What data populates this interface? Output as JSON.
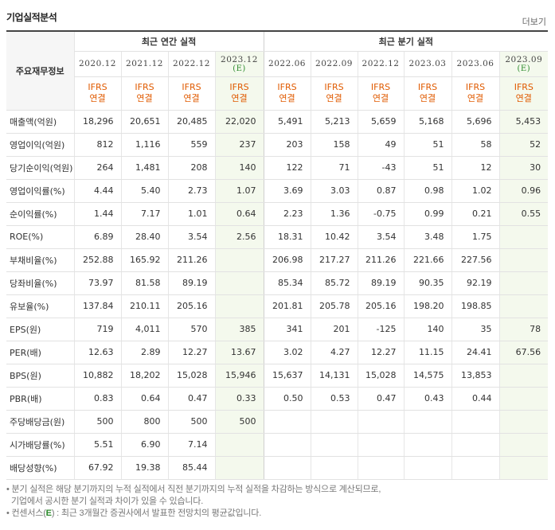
{
  "header": {
    "title": "기업실적분석",
    "more_label": "더보기"
  },
  "table": {
    "row_header_label": "주요재무정보",
    "groups": {
      "annual": "최근 연간 실적",
      "quarterly": "최근 분기 실적"
    },
    "periods": [
      {
        "label": "2020.12",
        "est": "",
        "ifrs1": "IFRS",
        "ifrs2": "연결"
      },
      {
        "label": "2021.12",
        "est": "",
        "ifrs1": "IFRS",
        "ifrs2": "연결"
      },
      {
        "label": "2022.12",
        "est": "",
        "ifrs1": "IFRS",
        "ifrs2": "연결"
      },
      {
        "label": "2023.12",
        "est": "(E)",
        "ifrs1": "IFRS",
        "ifrs2": "연결"
      },
      {
        "label": "2022.06",
        "est": "",
        "ifrs1": "IFRS",
        "ifrs2": "연결"
      },
      {
        "label": "2022.09",
        "est": "",
        "ifrs1": "IFRS",
        "ifrs2": "연결"
      },
      {
        "label": "2022.12",
        "est": "",
        "ifrs1": "IFRS",
        "ifrs2": "연결"
      },
      {
        "label": "2023.03",
        "est": "",
        "ifrs1": "IFRS",
        "ifrs2": "연결"
      },
      {
        "label": "2023.06",
        "est": "",
        "ifrs1": "IFRS",
        "ifrs2": "연결"
      },
      {
        "label": "2023.09",
        "est": "(E)",
        "ifrs1": "IFRS",
        "ifrs2": "연결"
      }
    ],
    "rows": [
      {
        "label": "매출액(억원)",
        "values": [
          "18,296",
          "20,651",
          "20,485",
          "22,020",
          "5,491",
          "5,213",
          "5,659",
          "5,168",
          "5,696",
          "5,453"
        ]
      },
      {
        "label": "영업이익(억원)",
        "values": [
          "812",
          "1,116",
          "559",
          "237",
          "203",
          "158",
          "49",
          "51",
          "58",
          "52"
        ]
      },
      {
        "label": "당기순이익(억원)",
        "values": [
          "264",
          "1,481",
          "208",
          "140",
          "122",
          "71",
          "-43",
          "51",
          "12",
          "30"
        ]
      },
      {
        "label": "영업이익률(%)",
        "values": [
          "4.44",
          "5.40",
          "2.73",
          "1.07",
          "3.69",
          "3.03",
          "0.87",
          "0.98",
          "1.02",
          "0.96"
        ]
      },
      {
        "label": "순이익률(%)",
        "values": [
          "1.44",
          "7.17",
          "1.01",
          "0.64",
          "2.23",
          "1.36",
          "-0.75",
          "0.99",
          "0.21",
          "0.55"
        ]
      },
      {
        "label": "ROE(%)",
        "values": [
          "6.89",
          "28.40",
          "3.54",
          "2.56",
          "18.31",
          "10.42",
          "3.54",
          "3.48",
          "1.75",
          ""
        ]
      },
      {
        "label": "부채비율(%)",
        "values": [
          "252.88",
          "165.92",
          "211.26",
          "",
          "206.98",
          "217.27",
          "211.26",
          "221.66",
          "227.56",
          ""
        ]
      },
      {
        "label": "당좌비율(%)",
        "values": [
          "73.97",
          "81.58",
          "89.19",
          "",
          "85.34",
          "85.72",
          "89.19",
          "90.35",
          "92.19",
          ""
        ]
      },
      {
        "label": "유보율(%)",
        "values": [
          "137.84",
          "210.11",
          "205.16",
          "",
          "201.81",
          "205.78",
          "205.16",
          "198.20",
          "198.85",
          ""
        ]
      },
      {
        "label": "EPS(원)",
        "values": [
          "719",
          "4,011",
          "570",
          "385",
          "341",
          "201",
          "-125",
          "140",
          "35",
          "78"
        ]
      },
      {
        "label": "PER(배)",
        "values": [
          "12.63",
          "2.89",
          "12.27",
          "13.67",
          "3.02",
          "4.27",
          "12.27",
          "11.15",
          "24.41",
          "67.56"
        ]
      },
      {
        "label": "BPS(원)",
        "values": [
          "10,882",
          "18,202",
          "15,028",
          "15,946",
          "15,637",
          "14,131",
          "15,028",
          "14,575",
          "13,853",
          ""
        ]
      },
      {
        "label": "PBR(배)",
        "values": [
          "0.83",
          "0.64",
          "0.47",
          "0.33",
          "0.50",
          "0.53",
          "0.47",
          "0.43",
          "0.44",
          ""
        ]
      },
      {
        "label": "주당배당금(원)",
        "values": [
          "500",
          "800",
          "500",
          "500",
          "",
          "",
          "",
          "",
          "",
          ""
        ]
      },
      {
        "label": "시가배당률(%)",
        "values": [
          "5.51",
          "6.90",
          "7.14",
          "",
          "",
          "",
          "",
          "",
          "",
          ""
        ]
      },
      {
        "label": "배당성향(%)",
        "values": [
          "67.92",
          "19.38",
          "85.44",
          "",
          "",
          "",
          "",
          "",
          "",
          ""
        ]
      }
    ]
  },
  "notes": {
    "line1": "분기 실적은 해당 분기까지의 누적 실적에서 직전 분기까지의 누적 실적을 차감하는 방식으로 계산되므로,",
    "line2": "기업에서 공시한 분기 실적과 차이가 있을 수 있습니다.",
    "line3_prefix": "컨센서스(",
    "line3_e": "E",
    "line3_suffix": ") : 최근 3개월간 증권사에서 발표한 전망치의 평균값입니다."
  },
  "colors": {
    "negative": "#e60000",
    "ifrs": "#e05a00",
    "estimate_bg": "#f4f9ed",
    "estimate_label": "#2b8a2b"
  }
}
